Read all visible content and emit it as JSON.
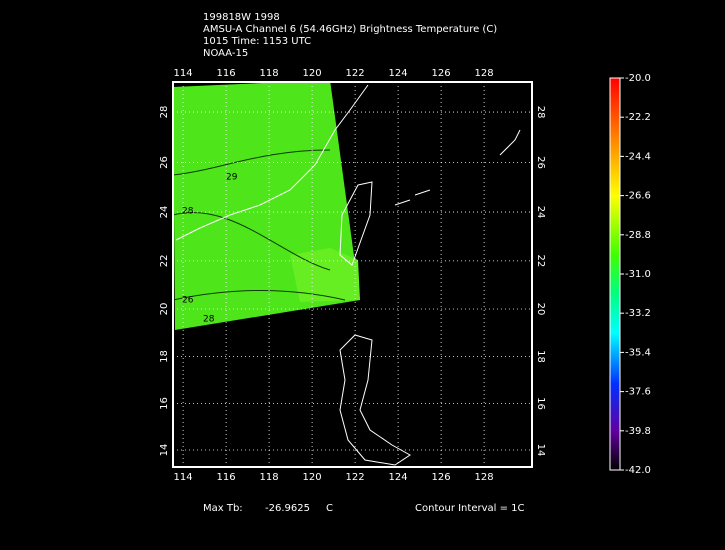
{
  "header": {
    "lines": [
      "199818W 1998",
      "AMSU-A Channel 6 (54.46GHz) Brightness Temperature (C)",
      "1015 Time: 1153 UTC",
      "NOAA-15"
    ]
  },
  "map": {
    "lon_ticks": [
      114,
      116,
      118,
      120,
      122,
      124,
      126,
      128
    ],
    "lat_ticks": [
      14,
      16,
      18,
      20,
      22,
      24,
      26,
      28
    ],
    "contour_labels": [
      "29",
      "28",
      "26",
      "28"
    ]
  },
  "colorbar": {
    "labels": [
      "-20.0",
      "-22.2",
      "-24.4",
      "-26.6",
      "-28.8",
      "-31.0",
      "-33.2",
      "-35.4",
      "-37.6",
      "-39.8",
      "-42.0"
    ]
  },
  "footer": {
    "max_label": "Max Tb:",
    "max_value": "-26.9625",
    "max_unit": "C",
    "contour_interval": "Contour Interval = 1C"
  }
}
